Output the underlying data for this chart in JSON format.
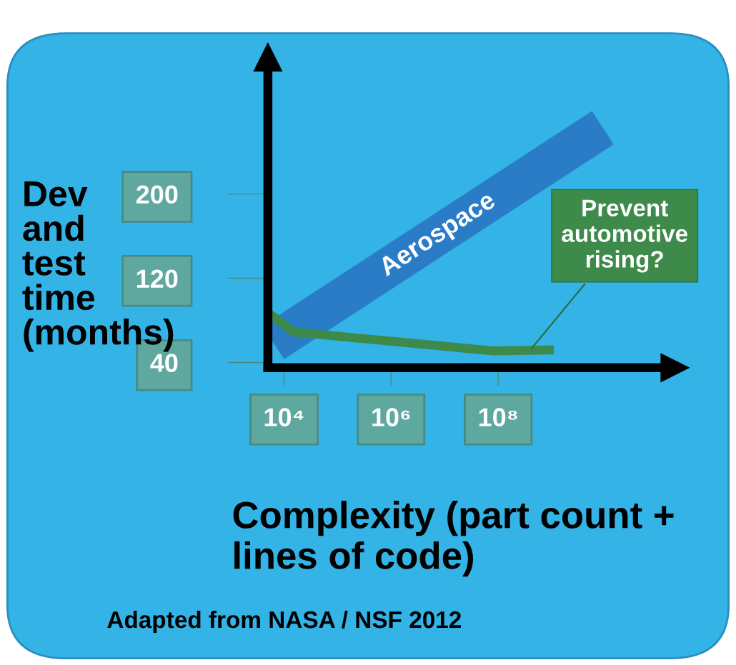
{
  "chart_data": {
    "type": "line",
    "xlabel": "Complexity (part count + lines of code)",
    "ylabel": "Dev and test time (months)",
    "log": "x",
    "xlim": [
      5000,
      200000000000
    ],
    "xticks": [
      {
        "value": 10000,
        "label": "10⁴"
      },
      {
        "value": 1000000,
        "label": "10⁶"
      },
      {
        "value": 100000000,
        "label": "10⁸"
      }
    ],
    "ylim": [
      35,
      330
    ],
    "yticks": [
      40,
      120,
      200
    ],
    "grid": false,
    "series": [
      {
        "name": "Aerospace",
        "color": "#2a7cc7",
        "x": [
          6300,
          9000000000
        ],
        "values": [
          59,
          263
        ]
      },
      {
        "color": "#3d8a4a",
        "x": [
          5500,
          15000,
          80000000,
          1100000000
        ],
        "values": [
          86,
          69,
          51,
          52
        ]
      }
    ],
    "annotations": [
      {
        "text": "Prevent automotive rising?",
        "x": 400000000,
        "y": 52
      },
      "Adapted from NASA / NSF 2012"
    ]
  }
}
